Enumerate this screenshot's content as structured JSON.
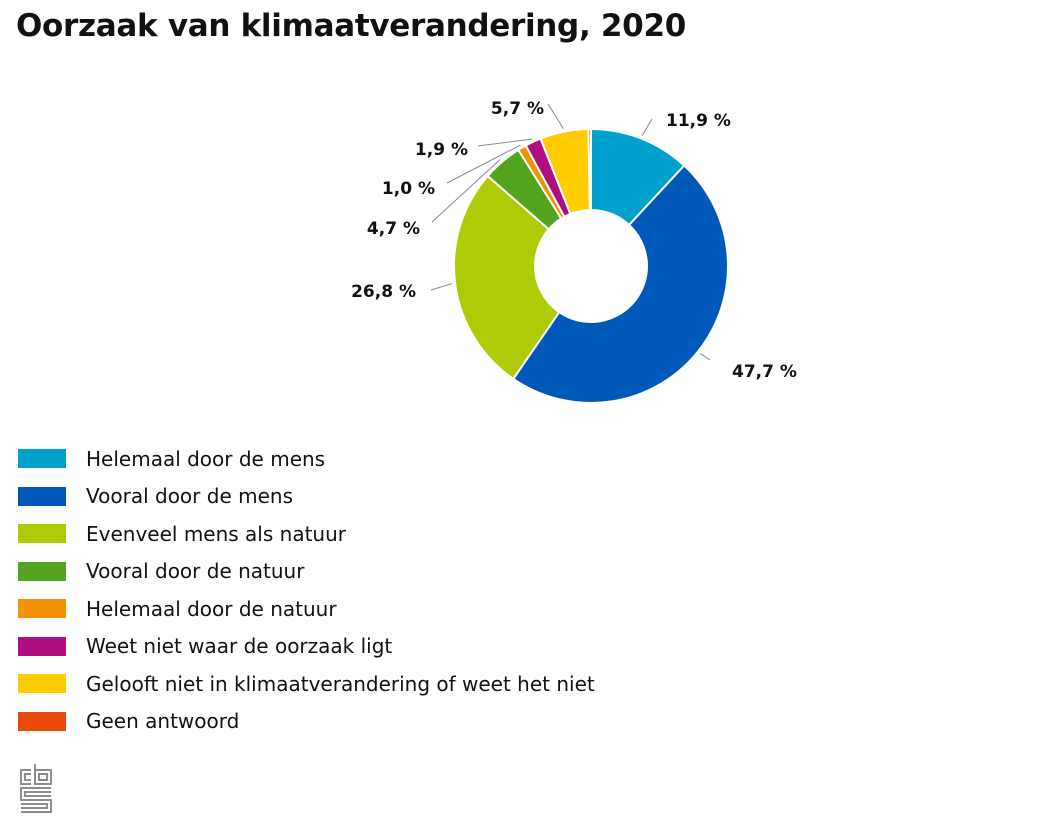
{
  "chart_data": {
    "type": "pie",
    "subtype": "donut",
    "title": "Oorzaak van klimaatverandering, 2020",
    "unit": "%",
    "legend_position": "bottom-left",
    "slices": [
      {
        "name": "Helemaal door de mens",
        "value": 11.9,
        "label": "11,9 %",
        "color": "#00A1CD"
      },
      {
        "name": "Vooral door de mens",
        "value": 47.7,
        "label": "47,7 %",
        "color": "#0058B8"
      },
      {
        "name": "Evenveel mens als natuur",
        "value": 26.8,
        "label": "26,8 %",
        "color": "#AFCB05"
      },
      {
        "name": "Vooral door de natuur",
        "value": 4.7,
        "label": "4,7 %",
        "color": "#53A31D"
      },
      {
        "name": "Helemaal door de natuur",
        "value": 1.0,
        "label": "1,0 %",
        "color": "#F39200"
      },
      {
        "name": "Weet niet waar de oorzaak ligt",
        "value": 1.9,
        "label": "1,9 %",
        "color": "#AF0E80"
      },
      {
        "name": "Gelooft niet in klimaatverandering of weet het niet",
        "value": 5.7,
        "label": "5,7 %",
        "color": "#FFCC00"
      },
      {
        "name": "Geen antwoord",
        "value": 0.3,
        "label": "",
        "color": "#E94C0A"
      }
    ]
  },
  "logo": {
    "name": "cbs-logo-icon",
    "color": "#8C8C8C"
  }
}
